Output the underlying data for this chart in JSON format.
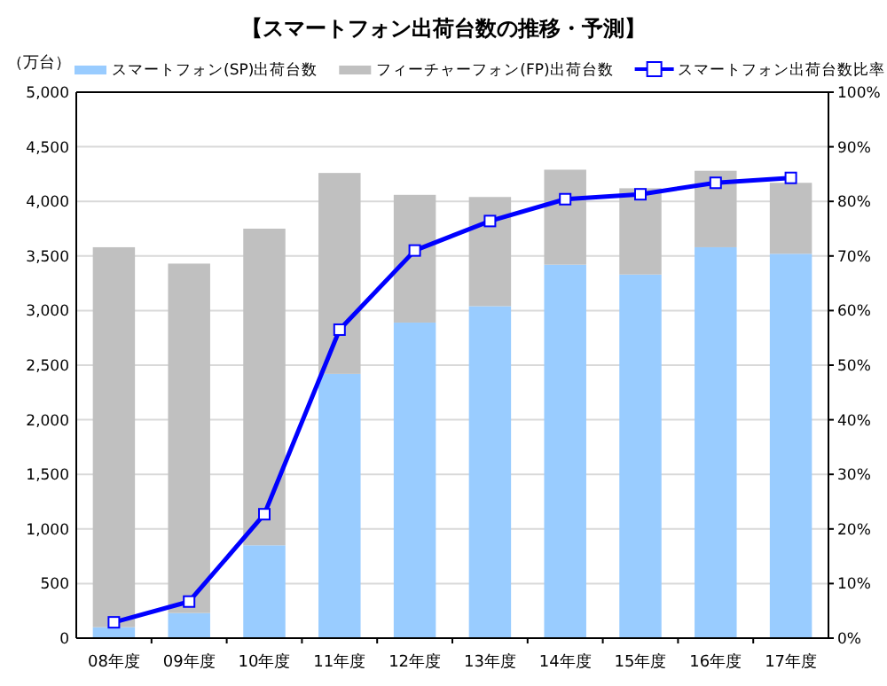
{
  "chart_data": {
    "type": "bar",
    "stacked": true,
    "title": "【スマートフォン出荷台数の推移・予測】",
    "ylabel": "（万台）",
    "categories": [
      "08年度",
      "09年度",
      "10年度",
      "11年度",
      "12年度",
      "13年度",
      "14年度",
      "15年度",
      "16年度",
      "17年度"
    ],
    "series": [
      {
        "name": "スマートフォン(SP)出荷台数",
        "color": "#99ccff",
        "values": [
          100,
          230,
          850,
          2420,
          2890,
          3040,
          3420,
          3330,
          3580,
          3520
        ]
      },
      {
        "name": "フィーチャーフォン(FP)出荷台数",
        "color": "#c0c0c0",
        "values": [
          3480,
          3200,
          2900,
          1840,
          1170,
          1000,
          870,
          790,
          700,
          650
        ]
      },
      {
        "name": "スマートフォン出荷台数比率",
        "color": "#0000ff",
        "type": "line",
        "axis": "y2",
        "marker": "square",
        "values": [
          2.9,
          6.7,
          22.7,
          56.5,
          71.0,
          76.4,
          80.4,
          81.3,
          83.4,
          84.3
        ]
      }
    ],
    "ylim": [
      0,
      5000
    ],
    "yticks": [
      0,
      500,
      {
        "value": 1000,
        "label": "1,000"
      },
      {
        "value": 1500,
        "label": "1,500"
      },
      {
        "value": 2000,
        "label": "2,000"
      },
      {
        "value": 2500,
        "label": "2,500"
      },
      {
        "value": 3000,
        "label": "3,000"
      },
      {
        "value": 3500,
        "label": "3,500"
      },
      {
        "value": 4000,
        "label": "4,000"
      },
      {
        "value": 4500,
        "label": "4,500"
      },
      {
        "value": 5000,
        "label": "5,000"
      }
    ],
    "y2lim": [
      0,
      100
    ],
    "y2ticks": [
      {
        "value": 0,
        "label": "0%"
      },
      {
        "value": 10,
        "label": "10%"
      },
      {
        "value": 20,
        "label": "20%"
      },
      {
        "value": 30,
        "label": "30%"
      },
      {
        "value": 40,
        "label": "40%"
      },
      {
        "value": 50,
        "label": "50%"
      },
      {
        "value": 60,
        "label": "60%"
      },
      {
        "value": 70,
        "label": "70%"
      },
      {
        "value": 80,
        "label": "80%"
      },
      {
        "value": 90,
        "label": "90%"
      },
      {
        "value": 100,
        "label": "100%"
      }
    ],
    "grid": "y",
    "legend": "top"
  }
}
